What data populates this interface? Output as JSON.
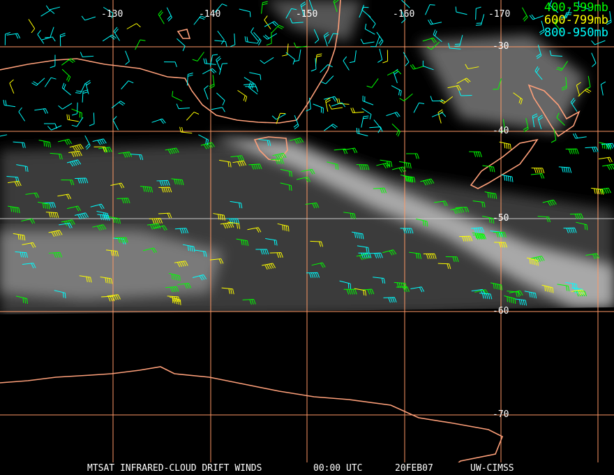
{
  "title": "MTSAT INFRARED-CLOUD DRIFT WINDS",
  "time": "00:00 UTC",
  "date": "20FEB07",
  "source": "UW-CIMSS",
  "longitude_labels": [
    "-130",
    "-140",
    "-150",
    "-160",
    "-170"
  ],
  "latitude_labels": [
    "-30",
    "-40",
    "-50",
    "-60",
    "-70"
  ],
  "legend": [
    {
      "label": "400-599mb",
      "color": "#00ff00"
    },
    {
      "label": "600-799mb",
      "color": "#ffff00"
    },
    {
      "label": "800-950mb",
      "color": "#00ffff"
    }
  ],
  "colors": {
    "grid": "#ff9966",
    "coast": "#ffa07a",
    "background": "#000000"
  },
  "icons": [
    "wind-barb"
  ]
}
